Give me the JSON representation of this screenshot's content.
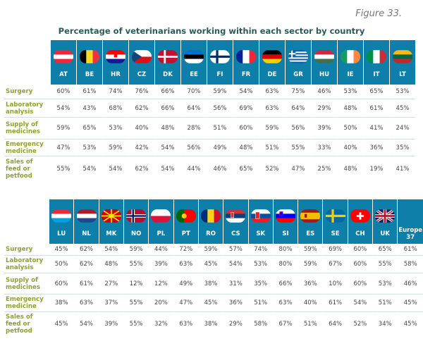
{
  "figure_label": "Figure 33.",
  "title": "Percentage of veterinarians working within each sector by country",
  "row_labels": [
    "Surgery",
    "Laboratory analysis",
    "Supply of medicines",
    "Emergency medicine",
    "Sales of feed or petfood"
  ],
  "table1": {
    "countries": [
      "AT",
      "BE",
      "HR",
      "CZ",
      "DK",
      "EE",
      "FI",
      "FR",
      "DE",
      "GR",
      "HU",
      "IE",
      "IT",
      "LT"
    ],
    "rows": [
      [
        "60%",
        "61%",
        "74%",
        "76%",
        "66%",
        "70%",
        "59%",
        "54%",
        "63%",
        "75%",
        "46%",
        "53%",
        "65%",
        "53%"
      ],
      [
        "54%",
        "43%",
        "68%",
        "62%",
        "66%",
        "64%",
        "56%",
        "69%",
        "63%",
        "64%",
        "29%",
        "48%",
        "61%",
        "45%"
      ],
      [
        "59%",
        "65%",
        "53%",
        "40%",
        "48%",
        "28%",
        "51%",
        "60%",
        "59%",
        "56%",
        "39%",
        "50%",
        "41%",
        "24%"
      ],
      [
        "47%",
        "53%",
        "59%",
        "42%",
        "54%",
        "56%",
        "49%",
        "48%",
        "51%",
        "55%",
        "33%",
        "40%",
        "36%",
        "35%"
      ],
      [
        "55%",
        "54%",
        "54%",
        "62%",
        "54%",
        "44%",
        "46%",
        "65%",
        "52%",
        "47%",
        "25%",
        "48%",
        "19%",
        "41%"
      ]
    ]
  },
  "table2": {
    "countries": [
      "LU",
      "NL",
      "MK",
      "NO",
      "PL",
      "PT",
      "RO",
      "CS",
      "SK",
      "SI",
      "ES",
      "SE",
      "CH",
      "UK"
    ],
    "europe_label": "Europe 37",
    "rows": [
      [
        "45%",
        "62%",
        "54%",
        "59%",
        "44%",
        "72%",
        "59%",
        "57%",
        "74%",
        "80%",
        "59%",
        "69%",
        "60%",
        "65%",
        "61%"
      ],
      [
        "50%",
        "62%",
        "48%",
        "55%",
        "39%",
        "63%",
        "45%",
        "54%",
        "53%",
        "80%",
        "59%",
        "67%",
        "60%",
        "55%",
        "58%"
      ],
      [
        "60%",
        "61%",
        "27%",
        "12%",
        "12%",
        "49%",
        "38%",
        "31%",
        "35%",
        "66%",
        "36%",
        "10%",
        "60%",
        "53%",
        "46%"
      ],
      [
        "38%",
        "63%",
        "37%",
        "55%",
        "20%",
        "47%",
        "45%",
        "36%",
        "51%",
        "63%",
        "40%",
        "61%",
        "54%",
        "51%",
        "45%"
      ],
      [
        "45%",
        "54%",
        "39%",
        "55%",
        "32%",
        "63%",
        "38%",
        "29%",
        "58%",
        "67%",
        "51%",
        "64%",
        "52%",
        "34%",
        "45%"
      ]
    ]
  },
  "colors": {
    "header_blue": "#0d7fa8",
    "label_green": "#8fa02f",
    "title_teal": "#2a5a5a"
  }
}
